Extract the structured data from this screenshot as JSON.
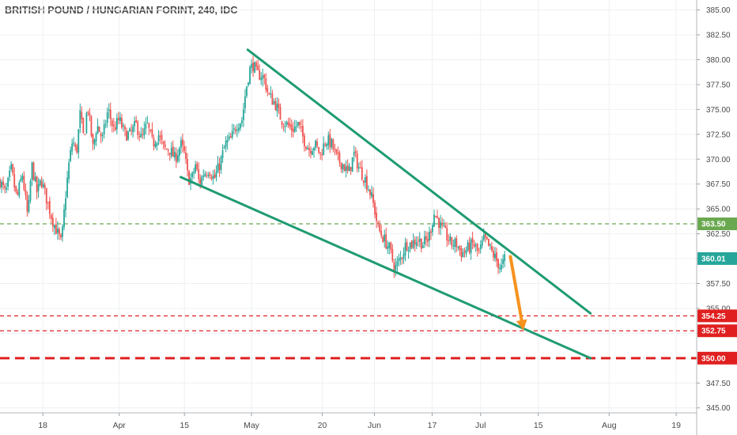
{
  "chart_data": {
    "type": "candlestick",
    "title": "BRITISH POUND / HUNGARIAN FORINT, 240, IDC",
    "ylim": [
      344.5,
      386.0
    ],
    "y_ticks": [
      "345.00",
      "347.50",
      "350.00",
      "352.50",
      "355.00",
      "357.50",
      "360.00",
      "362.50",
      "365.00",
      "367.50",
      "370.00",
      "372.50",
      "375.00",
      "377.50",
      "380.00",
      "382.50",
      "385.00"
    ],
    "x_ticks": [
      {
        "label": "18",
        "t": 6
      },
      {
        "label": "Apr",
        "t": 47
      },
      {
        "label": "15",
        "t": 82
      },
      {
        "label": "May",
        "t": 118
      },
      {
        "label": "20",
        "t": 156
      },
      {
        "label": "Jun",
        "t": 184
      },
      {
        "label": "17",
        "t": 215
      },
      {
        "label": "Jul",
        "t": 241
      },
      {
        "label": "15",
        "t": 272
      },
      {
        "label": "Aug",
        "t": 310
      },
      {
        "label": "19",
        "t": 346
      }
    ],
    "t_range": [
      -17,
      357
    ],
    "last_t": 254,
    "price_path": [
      [
        -17,
        367.8
      ],
      [
        -14,
        366.5
      ],
      [
        -11,
        369.0
      ],
      [
        -8,
        366.0
      ],
      [
        -5,
        368.5
      ],
      [
        -2,
        364.0
      ],
      [
        0,
        369.5
      ],
      [
        3,
        366.5
      ],
      [
        5,
        368.0
      ],
      [
        8,
        366.0
      ],
      [
        11,
        364.0
      ],
      [
        14,
        362.5
      ],
      [
        16,
        361.5
      ],
      [
        18,
        366.0
      ],
      [
        20,
        369.5
      ],
      [
        22,
        372.0
      ],
      [
        24,
        370.5
      ],
      [
        26,
        374.5
      ],
      [
        28,
        372.0
      ],
      [
        30,
        375.5
      ],
      [
        33,
        371.0
      ],
      [
        35,
        373.5
      ],
      [
        38,
        372.0
      ],
      [
        41,
        375.0
      ],
      [
        44,
        373.0
      ],
      [
        47,
        374.0
      ],
      [
        50,
        372.5
      ],
      [
        53,
        372.5
      ],
      [
        56,
        373.5
      ],
      [
        59,
        372.0
      ],
      [
        62,
        373.5
      ],
      [
        65,
        371.5
      ],
      [
        68,
        372.5
      ],
      [
        71,
        371.0
      ],
      [
        74,
        371.0
      ],
      [
        77,
        370.0
      ],
      [
        80,
        371.5
      ],
      [
        82,
        370.5
      ],
      [
        84,
        368.0
      ],
      [
        86,
        368.0
      ],
      [
        88,
        369.5
      ],
      [
        90,
        367.5
      ],
      [
        92,
        368.5
      ],
      [
        95,
        369.0
      ],
      [
        98,
        368.0
      ],
      [
        101,
        369.5
      ],
      [
        104,
        371.5
      ],
      [
        107,
        372.0
      ],
      [
        110,
        373.5
      ],
      [
        113,
        374.0
      ],
      [
        115,
        377.0
      ],
      [
        117,
        379.0
      ],
      [
        119,
        379.5
      ],
      [
        121,
        378.5
      ],
      [
        123,
        378.5
      ],
      [
        125,
        378.0
      ],
      [
        127,
        376.5
      ],
      [
        129,
        376.0
      ],
      [
        131,
        375.5
      ],
      [
        134,
        374.0
      ],
      [
        137,
        373.5
      ],
      [
        140,
        373.0
      ],
      [
        143,
        373.5
      ],
      [
        146,
        372.0
      ],
      [
        149,
        371.0
      ],
      [
        152,
        371.5
      ],
      [
        155,
        370.5
      ],
      [
        158,
        372.0
      ],
      [
        161,
        371.5
      ],
      [
        164,
        370.0
      ],
      [
        167,
        369.5
      ],
      [
        170,
        368.5
      ],
      [
        173,
        370.5
      ],
      [
        176,
        369.0
      ],
      [
        179,
        368.0
      ],
      [
        182,
        366.5
      ],
      [
        184,
        365.0
      ],
      [
        186,
        363.0
      ],
      [
        189,
        362.0
      ],
      [
        192,
        361.0
      ],
      [
        195,
        359.0
      ],
      [
        198,
        360.0
      ],
      [
        201,
        361.5
      ],
      [
        204,
        361.5
      ],
      [
        207,
        362.0
      ],
      [
        210,
        361.5
      ],
      [
        213,
        362.0
      ],
      [
        216,
        364.5
      ],
      [
        218,
        364.0
      ],
      [
        220,
        363.0
      ],
      [
        222,
        362.5
      ],
      [
        225,
        361.5
      ],
      [
        228,
        361.5
      ],
      [
        231,
        360.5
      ],
      [
        234,
        361.0
      ],
      [
        237,
        361.5
      ],
      [
        240,
        360.5
      ],
      [
        243,
        362.0
      ],
      [
        246,
        361.0
      ],
      [
        249,
        360.0
      ],
      [
        252,
        359.0
      ],
      [
        254,
        360.0
      ]
    ],
    "annotations": {
      "upper_trendline": [
        [
          116,
          381.0
        ],
        [
          300,
          354.5
        ]
      ],
      "lower_trendline": [
        [
          80,
          368.2
        ],
        [
          300,
          350.0
        ]
      ],
      "arrow": [
        [
          257,
          360.2
        ],
        [
          264,
          352.8
        ]
      ]
    },
    "current_price": {
      "label": "360.01",
      "value": 360.01,
      "color": "#26a69a"
    },
    "levels": [
      {
        "value": 363.5,
        "label": "363.50",
        "color": "#6aa84f",
        "style": "dashed"
      },
      {
        "value": 354.25,
        "label": "354.25",
        "color": "#e02020",
        "style": "dashed"
      },
      {
        "value": 352.75,
        "label": "352.75",
        "color": "#e02020",
        "style": "dashed"
      },
      {
        "value": 350.0,
        "label": "350.00",
        "color": "#e02020",
        "style": "dashed-bold"
      }
    ],
    "colors": {
      "up": "#26a69a",
      "down": "#ef5350",
      "trendline": "#1e9b72",
      "arrow": "#f7921e",
      "grid": "#eef0f3",
      "axis_text": "#4a4a4a"
    },
    "grid": true
  }
}
